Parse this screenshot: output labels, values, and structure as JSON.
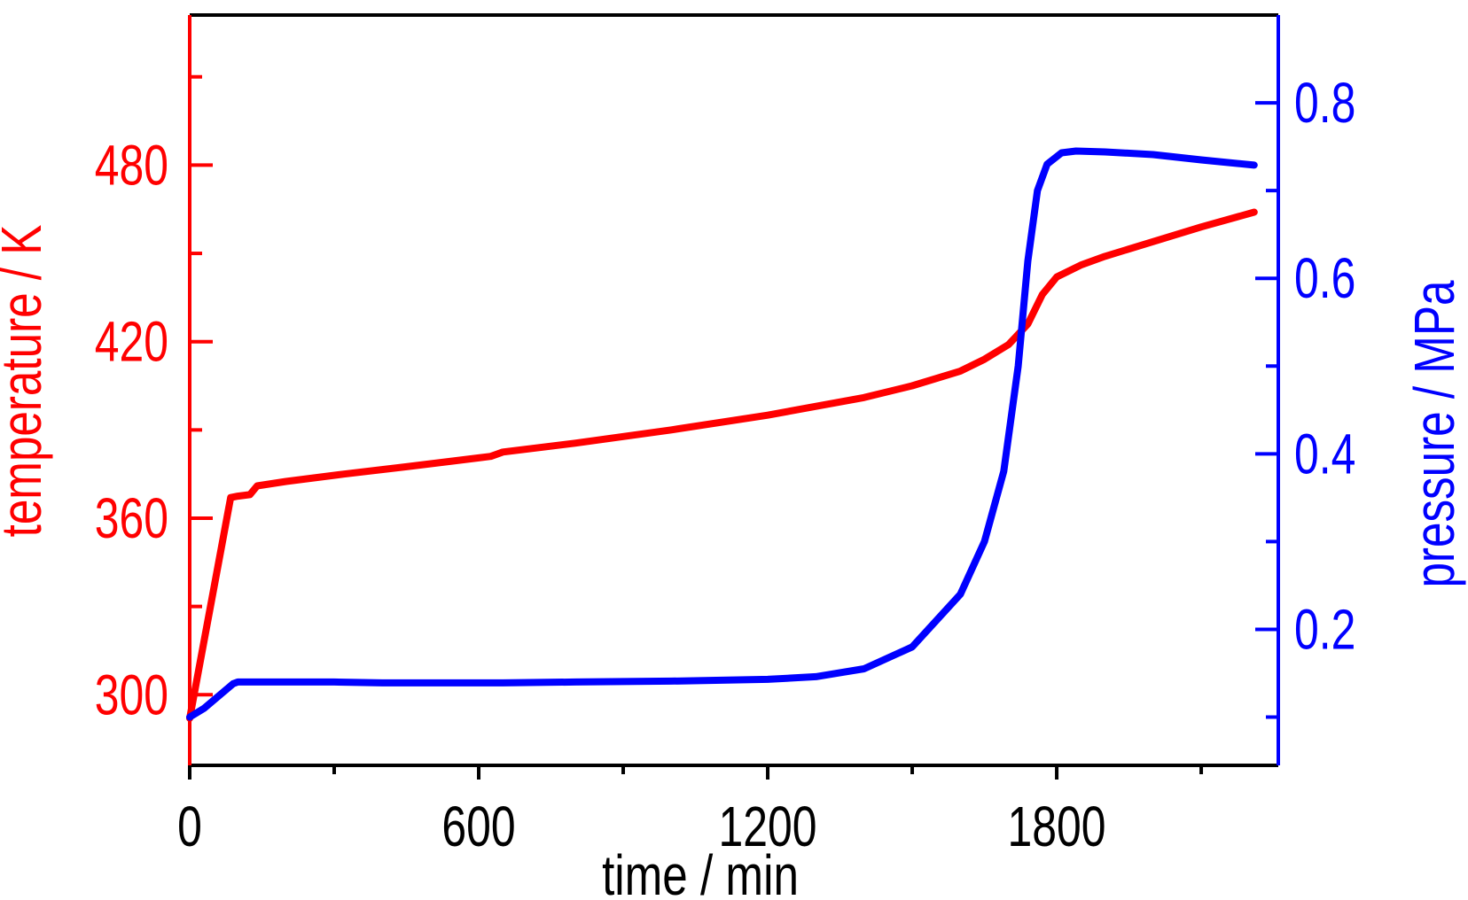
{
  "chart_data": {
    "type": "line",
    "dual_axis": true,
    "title": "",
    "xlabel": "time / min",
    "ylabel_left": "temperature / K",
    "ylabel_right": "pressure / MPa",
    "xlim": [
      0,
      2260
    ],
    "ylim_left": [
      276,
      531
    ],
    "ylim_right": [
      0.045,
      0.9
    ],
    "x_ticks": [
      0,
      600,
      1200,
      1800
    ],
    "x_tick_labels": [
      "0",
      "600",
      "1200",
      "1800"
    ],
    "x_minor_ticks": [
      300,
      900,
      1500,
      2100
    ],
    "left_ticks": [
      300,
      360,
      420,
      480
    ],
    "left_tick_labels": [
      "300",
      "360",
      "420",
      "480"
    ],
    "left_minor_ticks": [
      330,
      390,
      450,
      510
    ],
    "right_ticks": [
      0.2,
      0.4,
      0.6,
      0.8
    ],
    "right_tick_labels": [
      "0.2",
      "0.4",
      "0.6",
      "0.8"
    ],
    "right_minor_ticks": [
      0.1,
      0.3,
      0.5,
      0.7
    ],
    "grid": false,
    "legend": "none",
    "colors": {
      "temperature": "#ff0000",
      "pressure": "#0000ff",
      "frame": "#000000"
    },
    "series": [
      {
        "axis": "left",
        "color": "#ff0000",
        "points": [
          [
            0,
            292
          ],
          [
            85,
            367
          ],
          [
            100,
            367.5
          ],
          [
            125,
            368
          ],
          [
            140,
            371
          ],
          [
            200,
            372.5
          ],
          [
            320,
            375
          ],
          [
            450,
            377.5
          ],
          [
            600,
            380.5
          ],
          [
            625,
            381
          ],
          [
            650,
            382.5
          ],
          [
            800,
            385.5
          ],
          [
            1000,
            390
          ],
          [
            1200,
            395
          ],
          [
            1400,
            401
          ],
          [
            1500,
            405
          ],
          [
            1600,
            410
          ],
          [
            1650,
            414
          ],
          [
            1700,
            419
          ],
          [
            1740,
            426
          ],
          [
            1770,
            436
          ],
          [
            1800,
            442
          ],
          [
            1850,
            446
          ],
          [
            1900,
            449
          ],
          [
            2000,
            454
          ],
          [
            2100,
            459
          ],
          [
            2210,
            464
          ]
        ]
      },
      {
        "axis": "right",
        "color": "#0000ff",
        "points": [
          [
            0,
            0.1
          ],
          [
            30,
            0.11
          ],
          [
            90,
            0.138
          ],
          [
            100,
            0.14
          ],
          [
            300,
            0.14
          ],
          [
            400,
            0.139
          ],
          [
            650,
            0.139
          ],
          [
            800,
            0.14
          ],
          [
            1000,
            0.141
          ],
          [
            1200,
            0.143
          ],
          [
            1300,
            0.146
          ],
          [
            1400,
            0.155
          ],
          [
            1500,
            0.18
          ],
          [
            1600,
            0.24
          ],
          [
            1650,
            0.3
          ],
          [
            1690,
            0.38
          ],
          [
            1720,
            0.5
          ],
          [
            1740,
            0.62
          ],
          [
            1760,
            0.7
          ],
          [
            1780,
            0.73
          ],
          [
            1810,
            0.743
          ],
          [
            1840,
            0.745
          ],
          [
            1900,
            0.744
          ],
          [
            2000,
            0.741
          ],
          [
            2100,
            0.735
          ],
          [
            2210,
            0.729
          ]
        ]
      }
    ]
  }
}
